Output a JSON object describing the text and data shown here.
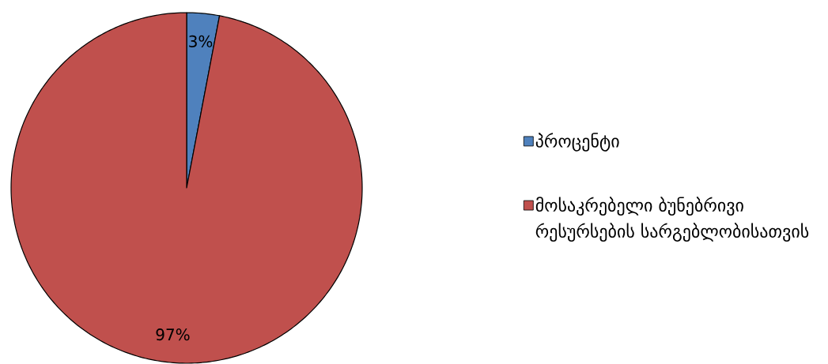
{
  "chart_data": {
    "type": "pie",
    "categories": [
      "პროცენტი",
      "მოსაკრებელი ბუნებრივი რესურსების სარგებლობისათვის"
    ],
    "values": [
      3,
      97
    ],
    "colors": [
      "#4f81bd",
      "#c0504d"
    ],
    "value_labels": [
      "3%",
      "97%"
    ],
    "legend": "right"
  }
}
